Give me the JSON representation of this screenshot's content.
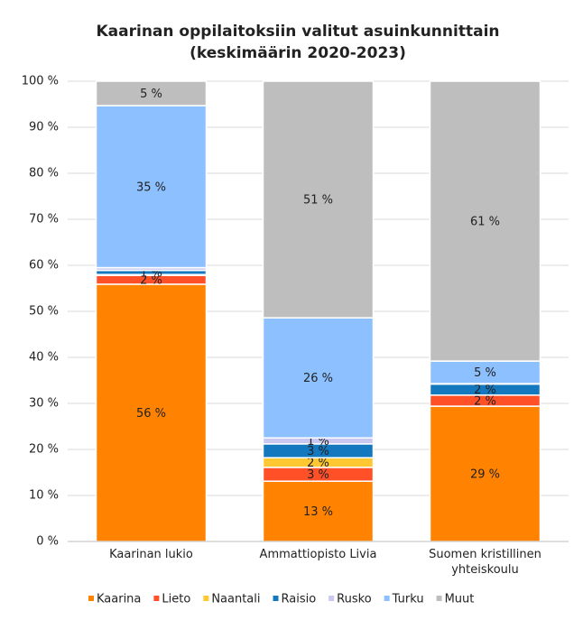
{
  "chart_data": {
    "type": "stacked_bar",
    "title": "Kaarinan oppilaitoksiin valitut asuinkunnittain",
    "subtitle": "(keskimäärin 2020-2023)",
    "categories": [
      "Kaarinan lukio",
      "Ammattiopisto Livia",
      "Suomen kristillinen yhteiskoulu"
    ],
    "series": [
      {
        "name": "Kaarina",
        "color": "#ff8200",
        "values": [
          55.9,
          13.1,
          29.4
        ],
        "value_labels": [
          "56 %",
          "13 %",
          "29 %"
        ]
      },
      {
        "name": "Lieto",
        "color": "#ff5028",
        "values": [
          1.9,
          3.0,
          2.4
        ],
        "value_labels": [
          "2 %",
          "3 %",
          "2 %"
        ]
      },
      {
        "name": "Naantali",
        "color": "#ffc832",
        "values": [
          0.2,
          2.1,
          0
        ],
        "value_labels": [
          null,
          "2 %",
          null
        ]
      },
      {
        "name": "Raisio",
        "color": "#1478be",
        "values": [
          0.9,
          3.0,
          2.4
        ],
        "value_labels": [
          "1 %",
          "3 %",
          "2 %"
        ]
      },
      {
        "name": "Rusko",
        "color": "#c8c8f0",
        "values": [
          0.6,
          1.3,
          0.1
        ],
        "value_labels": [
          null,
          "1 %",
          null
        ]
      },
      {
        "name": "Turku",
        "color": "#8cc0ff",
        "values": [
          35.2,
          26.1,
          4.9
        ],
        "value_labels": [
          "35 %",
          "26 %",
          "5 %"
        ]
      },
      {
        "name": "Muut",
        "color": "#bebebe",
        "values": [
          5.3,
          51.4,
          60.8
        ],
        "value_labels": [
          "5 %",
          "51 %",
          "61 %"
        ]
      }
    ],
    "ylim": [
      0,
      100
    ],
    "yticks": [
      {
        "value": 0,
        "label": "0 %"
      },
      {
        "value": 10,
        "label": "10 %"
      },
      {
        "value": 20,
        "label": "20 %"
      },
      {
        "value": 30,
        "label": "30 %"
      },
      {
        "value": 40,
        "label": "40 %"
      },
      {
        "value": 50,
        "label": "50 %"
      },
      {
        "value": 60,
        "label": "60 %"
      },
      {
        "value": 70,
        "label": "70 %"
      },
      {
        "value": 80,
        "label": "80 %"
      },
      {
        "value": 90,
        "label": "90 %"
      },
      {
        "value": 100,
        "label": "100 %"
      }
    ],
    "grid": true,
    "legend": "bottom"
  }
}
